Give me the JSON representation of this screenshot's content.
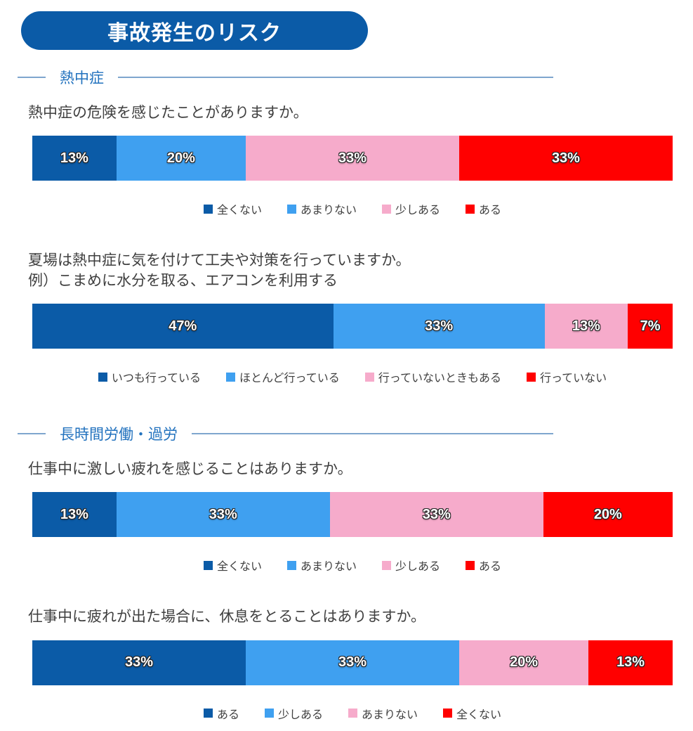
{
  "title_badge": "事故発生のリスク",
  "colors": {
    "badge_bg": "#0B5BA7",
    "section_heading_text": "#2272BE",
    "section_line": "#7FA6CE",
    "question_text": "#3F3F3F",
    "segment_dark_blue": "#0B5BA7",
    "segment_light_blue": "#3FA0F0",
    "segment_pink": "#F6ABCB",
    "segment_red": "#FF0000"
  },
  "sections": [
    {
      "heading": "熱中症",
      "charts": [
        {
          "question": "熱中症の危険を感じたことがありますか。",
          "segments": [
            {
              "label": "全くない",
              "value": 13,
              "color": "#0B5BA7"
            },
            {
              "label": "あまりない",
              "value": 20,
              "color": "#3FA0F0"
            },
            {
              "label": "少しある",
              "value": 33,
              "color": "#F6ABCB"
            },
            {
              "label": "ある",
              "value": 33,
              "color": "#FF0000"
            }
          ]
        },
        {
          "question": "夏場は熱中症に気を付けて工夫や対策を行っていますか。",
          "question2": "例）こまめに水分を取る、エアコンを利用する",
          "segments": [
            {
              "label": "いつも行っている",
              "value": 47,
              "color": "#0B5BA7"
            },
            {
              "label": "ほとんど行っている",
              "value": 33,
              "color": "#3FA0F0"
            },
            {
              "label": "行っていないときもある",
              "value": 13,
              "color": "#F6ABCB"
            },
            {
              "label": "行っていない",
              "value": 7,
              "color": "#FF0000"
            }
          ]
        }
      ]
    },
    {
      "heading": "長時間労働・過労",
      "charts": [
        {
          "question": "仕事中に激しい疲れを感じることはありますか。",
          "segments": [
            {
              "label": "全くない",
              "value": 13,
              "color": "#0B5BA7"
            },
            {
              "label": "あまりない",
              "value": 33,
              "color": "#3FA0F0"
            },
            {
              "label": "少しある",
              "value": 33,
              "color": "#F6ABCB"
            },
            {
              "label": "ある",
              "value": 20,
              "color": "#FF0000"
            }
          ]
        },
        {
          "question": "仕事中に疲れが出た場合に、休息をとることはありますか。",
          "segments": [
            {
              "label": "ある",
              "value": 33,
              "color": "#0B5BA7"
            },
            {
              "label": "少しある",
              "value": 33,
              "color": "#3FA0F0"
            },
            {
              "label": "あまりない",
              "value": 20,
              "color": "#F6ABCB"
            },
            {
              "label": "全くない",
              "value": 13,
              "color": "#FF0000"
            }
          ]
        }
      ]
    }
  ],
  "chart_data": [
    {
      "type": "bar",
      "subtype": "stacked-horizontal-100pct",
      "section": "熱中症",
      "title": "熱中症の危険を感じたことがありますか。",
      "categories": [
        "全くない",
        "あまりない",
        "少しある",
        "ある"
      ],
      "values": [
        13,
        20,
        33,
        33
      ],
      "unit": "%",
      "colors": [
        "#0B5BA7",
        "#3FA0F0",
        "#F6ABCB",
        "#FF0000"
      ],
      "legend_position": "bottom",
      "data_labels": "inside-white-with-dark-outline"
    },
    {
      "type": "bar",
      "subtype": "stacked-horizontal-100pct",
      "section": "熱中症",
      "title": "夏場は熱中症に気を付けて工夫や対策を行っていますか。 例）こまめに水分を取る、エアコンを利用する",
      "categories": [
        "いつも行っている",
        "ほとんど行っている",
        "行っていないときもある",
        "行っていない"
      ],
      "values": [
        47,
        33,
        13,
        7
      ],
      "unit": "%",
      "colors": [
        "#0B5BA7",
        "#3FA0F0",
        "#F6ABCB",
        "#FF0000"
      ],
      "legend_position": "bottom",
      "data_labels": "inside-white-with-dark-outline"
    },
    {
      "type": "bar",
      "subtype": "stacked-horizontal-100pct",
      "section": "長時間労働・過労",
      "title": "仕事中に激しい疲れを感じることはありますか。",
      "categories": [
        "全くない",
        "あまりない",
        "少しある",
        "ある"
      ],
      "values": [
        13,
        33,
        33,
        20
      ],
      "unit": "%",
      "colors": [
        "#0B5BA7",
        "#3FA0F0",
        "#F6ABCB",
        "#FF0000"
      ],
      "legend_position": "bottom",
      "data_labels": "inside-white-with-dark-outline"
    },
    {
      "type": "bar",
      "subtype": "stacked-horizontal-100pct",
      "section": "長時間労働・過労",
      "title": "仕事中に疲れが出た場合に、休息をとることはありますか。",
      "categories": [
        "ある",
        "少しある",
        "あまりない",
        "全くない"
      ],
      "values": [
        33,
        33,
        20,
        13
      ],
      "unit": "%",
      "colors": [
        "#0B5BA7",
        "#3FA0F0",
        "#F6ABCB",
        "#FF0000"
      ],
      "legend_position": "bottom",
      "data_labels": "inside-white-with-dark-outline"
    }
  ]
}
